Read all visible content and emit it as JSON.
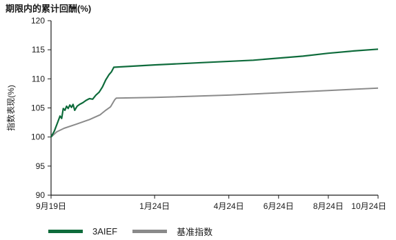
{
  "title": "期限内的累计回酬(%)",
  "chart_data": {
    "type": "line",
    "ylabel": "指数表现(%)",
    "xlabel": "",
    "ylim": [
      90,
      120
    ],
    "yticks": [
      90,
      95,
      100,
      105,
      110,
      115,
      120
    ],
    "xlim": [
      "2023-09-19",
      "2024-10-24"
    ],
    "xticks": [
      {
        "date": "2023-09-19",
        "label": "9月19日"
      },
      {
        "date": "2024-01-24",
        "label": "1月24日"
      },
      {
        "date": "2024-04-24",
        "label": "4月24日"
      },
      {
        "date": "2024-06-24",
        "label": "6月24日"
      },
      {
        "date": "2024-08-24",
        "label": "8月24日"
      },
      {
        "date": "2024-10-24",
        "label": "10月24日"
      }
    ],
    "grid": false,
    "legend_position": "bottom-left",
    "series": [
      {
        "name": "3AIEF",
        "color": "#0e6b3b",
        "points": [
          [
            "2023-09-19",
            100.0
          ],
          [
            "2023-09-23",
            101.0
          ],
          [
            "2023-09-27",
            102.5
          ],
          [
            "2023-09-30",
            103.6
          ],
          [
            "2023-10-02",
            103.2
          ],
          [
            "2023-10-04",
            104.9
          ],
          [
            "2023-10-06",
            104.6
          ],
          [
            "2023-10-08",
            105.3
          ],
          [
            "2023-10-10",
            104.9
          ],
          [
            "2023-10-12",
            105.5
          ],
          [
            "2023-10-14",
            105.1
          ],
          [
            "2023-10-16",
            105.6
          ],
          [
            "2023-10-18",
            104.6
          ],
          [
            "2023-10-21",
            105.3
          ],
          [
            "2023-10-24",
            105.6
          ],
          [
            "2023-10-28",
            105.9
          ],
          [
            "2023-11-01",
            106.3
          ],
          [
            "2023-11-05",
            106.6
          ],
          [
            "2023-11-09",
            106.5
          ],
          [
            "2023-11-13",
            107.2
          ],
          [
            "2023-11-17",
            107.7
          ],
          [
            "2023-11-21",
            108.6
          ],
          [
            "2023-11-25",
            109.8
          ],
          [
            "2023-11-29",
            110.7
          ],
          [
            "2023-12-02",
            111.2
          ],
          [
            "2023-12-05",
            112.0
          ],
          [
            "2024-01-24",
            112.4
          ],
          [
            "2024-03-24",
            112.8
          ],
          [
            "2024-05-24",
            113.2
          ],
          [
            "2024-07-24",
            113.9
          ],
          [
            "2024-08-24",
            114.4
          ],
          [
            "2024-09-24",
            114.8
          ],
          [
            "2024-10-24",
            115.1
          ]
        ]
      },
      {
        "name": "基准指数",
        "color": "#8a8a8a",
        "points": [
          [
            "2023-09-19",
            100.0
          ],
          [
            "2023-09-26",
            100.9
          ],
          [
            "2023-10-05",
            101.5
          ],
          [
            "2023-10-20",
            102.2
          ],
          [
            "2023-11-05",
            103.0
          ],
          [
            "2023-11-18",
            103.8
          ],
          [
            "2023-11-25",
            104.6
          ],
          [
            "2023-12-01",
            105.2
          ],
          [
            "2023-12-06",
            106.4
          ],
          [
            "2023-12-08",
            106.7
          ],
          [
            "2024-01-24",
            106.8
          ],
          [
            "2024-04-24",
            107.2
          ],
          [
            "2024-06-24",
            107.6
          ],
          [
            "2024-08-24",
            108.0
          ],
          [
            "2024-10-24",
            108.4
          ]
        ]
      }
    ]
  }
}
